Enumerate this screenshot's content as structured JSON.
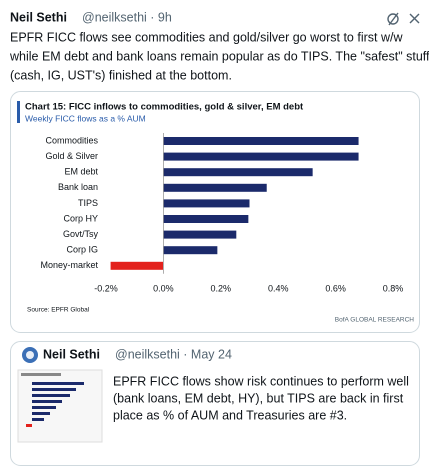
{
  "tweet": {
    "name": "Neil Sethi",
    "handle_time": "@neilksethi · 9h",
    "text_lines": [
      "EPFR FICC flows see commodities and gold/silver go worst to first w/w",
      "while EM debt and bank loans remain popular as do TIPS. The \"safest\" stuff",
      "(cash, IG, UST's) finished at the bottom."
    ]
  },
  "chart_data": {
    "type": "hbar",
    "title": "Chart 15: FICC inflows to commodities, gold & silver, EM debt",
    "subtitle": "Weekly FICC flows as a % AUM",
    "categories": [
      "Commodities",
      "Gold & Silver",
      "EM debt",
      "Bank loan",
      "TIPS",
      "Corp HY",
      "Govt/Tsy",
      "Corp IG",
      "Money-market"
    ],
    "values": [
      0.68,
      0.68,
      0.52,
      0.36,
      0.3,
      0.296,
      0.254,
      0.188,
      -0.184
    ],
    "color": "#1b2a6b",
    "negative_color": "#e3211c",
    "xlim": [
      -0.2,
      0.8
    ],
    "xticks": [
      {
        "value": -0.2,
        "label": "-0.2%"
      },
      {
        "value": 0,
        "label": "0.0%"
      },
      {
        "value": 0.2,
        "label": "0.2%"
      },
      {
        "value": 0.4,
        "label": "0.4%"
      },
      {
        "value": 0.6,
        "label": "0.6%"
      },
      {
        "value": 0.8,
        "label": "0.8%"
      }
    ],
    "source": "Source: EPFR Global",
    "credit": "BofA GLOBAL RESEARCH"
  },
  "quoted_tweet": {
    "name": "Neil Sethi",
    "handle_time": "@neilksethi · May 24",
    "text_lines": [
      "EPFR FICC flows show risk continues to perform well",
      "(bank loans, EM debt, HY), but TIPS are back in first",
      "place as % of AUM and Treasuries are #3."
    ]
  }
}
